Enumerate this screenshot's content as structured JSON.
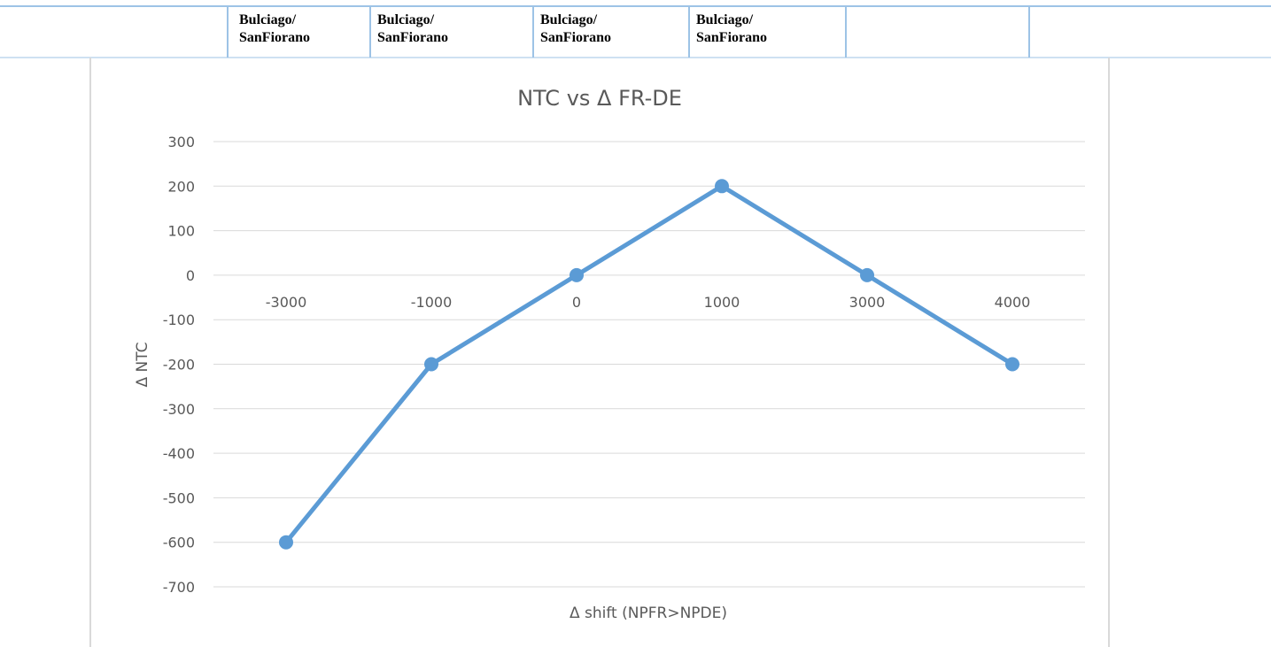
{
  "table": {
    "rows": [
      [
        [
          "Bulciago/",
          "SanFiorano"
        ],
        [
          "Bulciago/",
          "SanFiorano"
        ],
        [
          "Bulciago/",
          "SanFiorano"
        ],
        [
          "Bulciago/",
          "SanFiorano"
        ]
      ]
    ]
  },
  "chart_data": {
    "type": "line",
    "title": "NTC vs Δ FR-DE",
    "x_label": "Δ shift (NPFR>NPDE)",
    "y_label": "Δ NTC",
    "categories": [
      "-3000",
      "-1000",
      "0",
      "1000",
      "3000",
      "4000"
    ],
    "series": [
      {
        "name": "Δ NTC",
        "color": "#5b9bd5",
        "values": [
          -600,
          -200,
          0,
          200,
          0,
          -200
        ]
      }
    ],
    "ylim": [
      -700,
      300
    ],
    "yticks": [
      -700,
      -600,
      -500,
      -400,
      -300,
      -200,
      -100,
      0,
      100,
      200,
      300
    ],
    "grid": true
  }
}
